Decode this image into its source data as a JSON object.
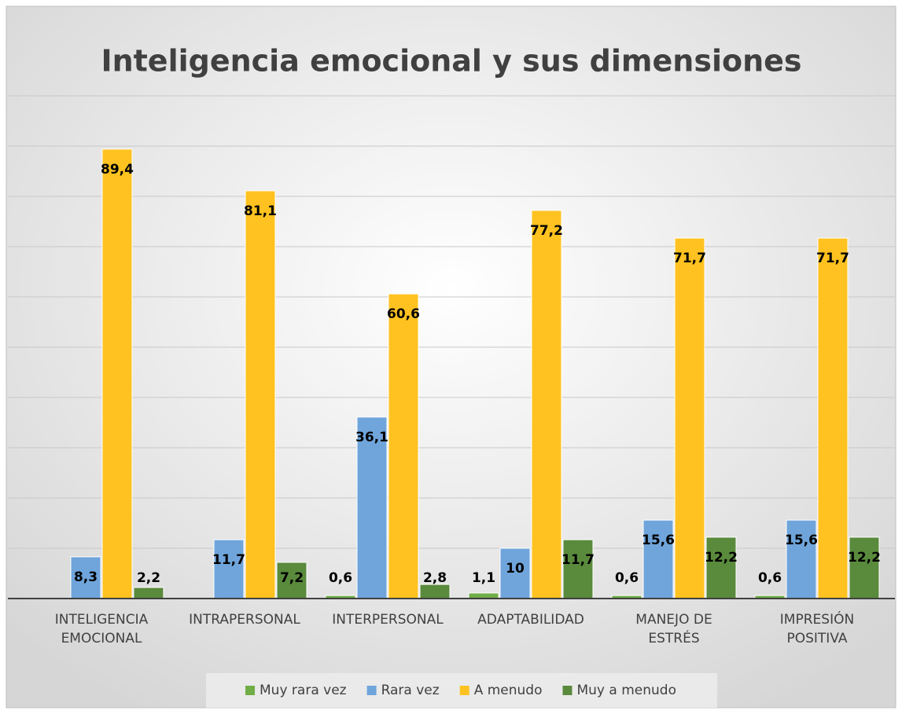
{
  "chart_data": {
    "type": "bar",
    "title": "Inteligencia emocional y sus dimensiones",
    "categories": [
      "INTELIGENCIA EMOCIONAL",
      "INTRAPERSONAL",
      "INTERPERSONAL",
      "ADAPTABILIDAD",
      "MANEJO DE ESTRÉS",
      "IMPRESIÓN POSITIVA"
    ],
    "series": [
      {
        "name": "Muy rara vez",
        "color": "#70ad47",
        "values": [
          null,
          null,
          0.6,
          1.1,
          0.6,
          0.6
        ],
        "value_labels": [
          null,
          null,
          "0,6",
          "1,1",
          "0,6",
          "0,6"
        ]
      },
      {
        "name": "Rara vez",
        "color": "#6fa5db",
        "values": [
          8.3,
          11.7,
          36.1,
          10,
          15.6,
          15.6
        ],
        "value_labels": [
          "8,3",
          "11,7",
          "36,1",
          "10",
          "15,6",
          "15,6"
        ]
      },
      {
        "name": "A menudo",
        "color": "#ffc220",
        "values": [
          89.4,
          81.1,
          60.6,
          77.2,
          71.7,
          71.7
        ],
        "value_labels": [
          "89,4",
          "81,1",
          "60,6",
          "77,2",
          "71,7",
          "71,7"
        ]
      },
      {
        "name": "Muy a menudo",
        "color": "#5a8a3c",
        "values": [
          2.2,
          7.2,
          2.8,
          11.7,
          12.2,
          12.2
        ],
        "value_labels": [
          "2,2",
          "7,2",
          "2,8",
          "11,7",
          "12,2",
          "12,2"
        ]
      }
    ],
    "ylim": [
      0,
      100
    ],
    "yticks": [
      0,
      10,
      20,
      30,
      40,
      50,
      60,
      70,
      80,
      90,
      100
    ],
    "grid": true,
    "legend": "bottom"
  }
}
